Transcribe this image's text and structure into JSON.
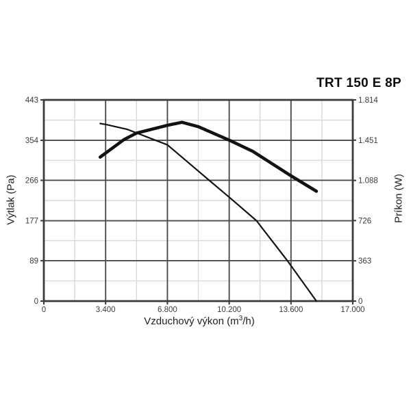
{
  "title": "TRT 150 E 8P",
  "colors": {
    "background": "#ffffff",
    "axis": "#3a3a3a",
    "grid_major": "#4b4b4b",
    "grid_minor": "#d9d9d9",
    "curve": "#121212",
    "tick_text": "#3b3b3b",
    "label_text": "#1e1e1e",
    "title_text": "#0c0c0c"
  },
  "chart_data": {
    "type": "line",
    "title": "TRT 150 E 8P",
    "legend": "none",
    "grid": true,
    "x_axis": {
      "label": "Vzduchový výkon (m³/h)",
      "label_prefix": "Vzduchový výkon (m",
      "label_sup": "3",
      "label_suffix": "/h)",
      "min": 0,
      "max": 17000,
      "major_ticks": [
        0,
        3400,
        6800,
        10200,
        13600,
        17000
      ],
      "tick_labels": [
        "0",
        "3.400",
        "6.800",
        "10.200",
        "13.600",
        "17.000"
      ],
      "minor_gridlines": [
        1700,
        5100,
        8500,
        11900,
        15300
      ]
    },
    "y_left_axis": {
      "label": "Výtlak (Pa)",
      "min": 0,
      "max": 443,
      "major_ticks": [
        0,
        89,
        177,
        266,
        354,
        443
      ],
      "tick_labels": [
        "0",
        "89",
        "177",
        "266",
        "354",
        "443"
      ]
    },
    "y_right_axis": {
      "label": "Príkon (W)",
      "min": 0,
      "max": 1814,
      "major_ticks": [
        0,
        363,
        726,
        1088,
        1451,
        1814
      ],
      "tick_labels": [
        "0",
        "363",
        "726",
        "1.088",
        "1.451",
        "1.814"
      ]
    },
    "series": [
      {
        "name": "pressure-curve",
        "description": "Výtlak (Pa) vs Vzduchový výkon",
        "axis": "left",
        "stroke_width": 2.2,
        "points": [
          [
            3100,
            391
          ],
          [
            3400,
            389
          ],
          [
            4600,
            378
          ],
          [
            6800,
            344
          ],
          [
            9100,
            266
          ],
          [
            10400,
            222
          ],
          [
            11700,
            177
          ],
          [
            13400,
            89
          ],
          [
            15000,
            0
          ]
        ]
      },
      {
        "name": "power-curve",
        "description": "Príkon (W) vs Vzduchový výkon",
        "axis": "right",
        "stroke_width": 4.6,
        "points": [
          [
            3100,
            1298
          ],
          [
            4400,
            1455
          ],
          [
            5100,
            1515
          ],
          [
            6800,
            1585
          ],
          [
            7600,
            1612
          ],
          [
            8500,
            1573
          ],
          [
            10200,
            1451
          ],
          [
            11500,
            1350
          ],
          [
            13600,
            1130
          ],
          [
            15000,
            990
          ]
        ]
      }
    ]
  }
}
